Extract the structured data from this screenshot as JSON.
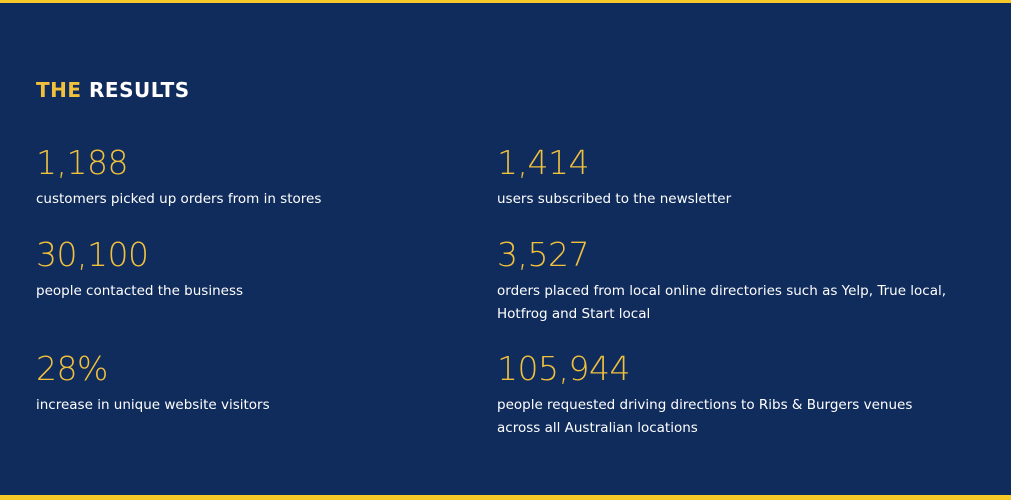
{
  "section": {
    "title": {
      "highlight": "THE",
      "rest": "RESULTS"
    },
    "stats": [
      {
        "value": "1,188",
        "description": "customers picked up orders from in stores"
      },
      {
        "value": "1,414",
        "description": "users subscribed to the newsletter"
      },
      {
        "value": "30,100",
        "description": "people contacted the business"
      },
      {
        "value": "3,527",
        "description": "orders placed from local online directories such as Yelp, True local, Hotfrog and Start local"
      },
      {
        "value": "28%",
        "description": "increase in unique website visitors"
      },
      {
        "value": "105,944",
        "description": "people requested driving directions to Ribs & Burgers venues across all Australian locations"
      }
    ]
  }
}
